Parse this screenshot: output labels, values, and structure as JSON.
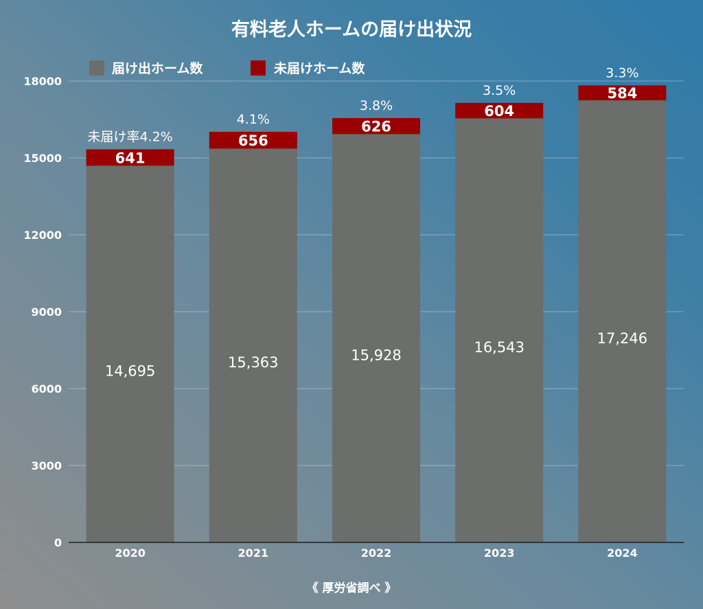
{
  "chart_data": {
    "type": "bar",
    "stacked": true,
    "title": "有料老人ホームの届け出状況",
    "categories": [
      "2020",
      "2021",
      "2022",
      "2023",
      "2024"
    ],
    "series": [
      {
        "name": "届け出ホーム数",
        "color": "#6b6e6b",
        "values": [
          14695,
          15363,
          15928,
          16543,
          17246
        ],
        "labels": [
          "14,695",
          "15,363",
          "15,928",
          "16,543",
          "17,246"
        ]
      },
      {
        "name": "未届けホーム数",
        "color": "#9a0000",
        "values": [
          641,
          656,
          626,
          604,
          584
        ],
        "labels": [
          "641",
          "656",
          "626",
          "604",
          "584"
        ]
      }
    ],
    "rate_labels": [
      "未届け率4.2%",
      "4.1%",
      "3.8%",
      "3.5%",
      "3.3%"
    ],
    "yticks": [
      "0",
      "3000",
      "6000",
      "9000",
      "12000",
      "15000",
      "18000"
    ],
    "ylim": [
      0,
      18000
    ],
    "grid": true,
    "legend_position": "top-left",
    "source": "《 厚労省調べ 》"
  }
}
